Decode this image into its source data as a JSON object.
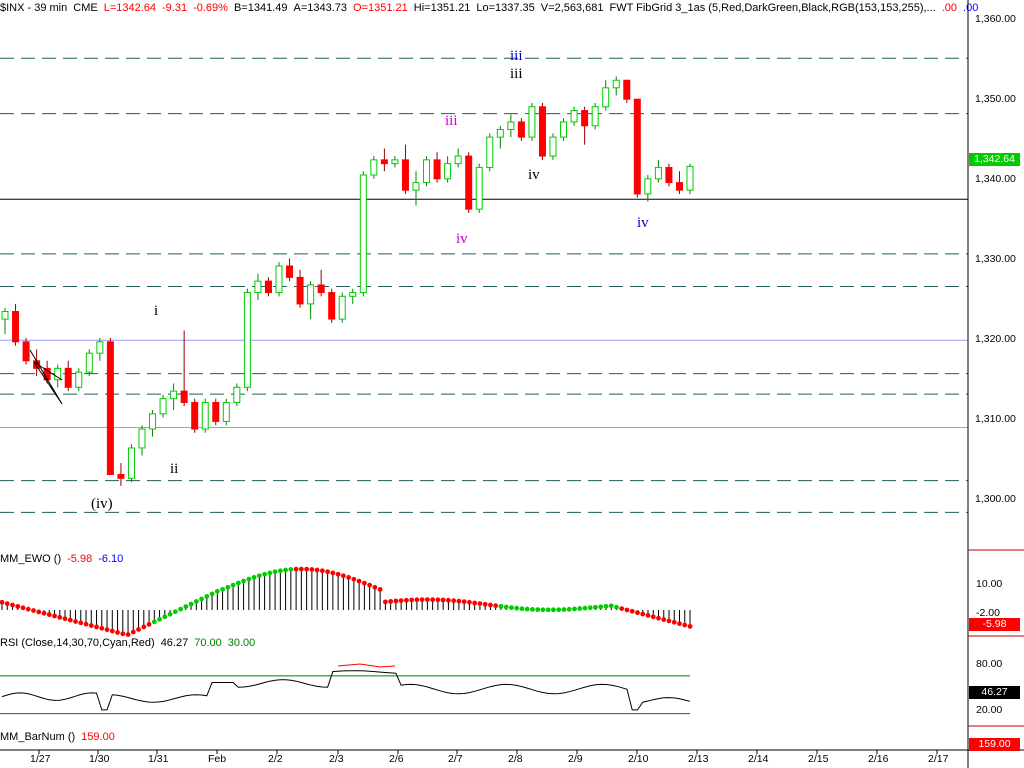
{
  "header": {
    "symbol": "$INX - 39 min",
    "exchange": "CME",
    "last": "L=1342.64",
    "change": "-9.31",
    "change_pct": "-0.69%",
    "bid": "B=1341.49",
    "ask": "A=1343.73",
    "open": "O=1351.21",
    "high": "Hi=1351.21",
    "low": "Lo=1337.35",
    "volume": "V=2,563,681",
    "study": "FWT FibGrid 3_1as (5,Red,DarkGreen,Black,RGB(153,153,255),...",
    "tail1": ".00",
    "tail2": ".00",
    "colors": {
      "last": "#ff0000",
      "change": "#ff0000",
      "change_pct": "#ff0000",
      "bid": "#000000",
      "ask": "#000000",
      "open": "#ff0000",
      "high": "#000000",
      "low": "#000000",
      "volume": "#000000",
      "study": "#000000",
      "tail1": "#ff0000",
      "tail2": "#0000ff"
    }
  },
  "ewo": {
    "label": "MM_EWO ()",
    "value1": "-5.98",
    "value2": "-6.10",
    "current_box": "-5.98",
    "axis_labels": [
      "10.00",
      "-2.00"
    ]
  },
  "rsi": {
    "label": "RSI (Close,14,30,70,Cyan,Red)",
    "value": "46.27",
    "upper": "70.00",
    "lower": "30.00",
    "current_box": "46.27",
    "axis_labels": [
      "80.00",
      "20.00"
    ]
  },
  "barnum": {
    "label": "MM_BarNum ()",
    "value": "159.00",
    "current_box": "159.00"
  },
  "price_axis": {
    "labels": [
      "1,360.00",
      "1,350.00",
      "1,340.00",
      "1,330.00",
      "1,320.00",
      "1,310.00",
      "1,300.00"
    ],
    "current_box": "1,342.64"
  },
  "date_axis": {
    "labels": [
      "1/27",
      "1/30",
      "1/31",
      "Feb",
      "2/2",
      "2/3",
      "2/6",
      "2/7",
      "2/8",
      "2/9",
      "2/10",
      "2/13",
      "2/14",
      "2/15",
      "2/16",
      "2/17"
    ]
  },
  "wave_labels": [
    {
      "text": "(iv)",
      "color": "#000000"
    },
    {
      "text": "i",
      "color": "#000000"
    },
    {
      "text": "ii",
      "color": "#000000"
    },
    {
      "text": "iii",
      "color": "#cc00cc"
    },
    {
      "text": "iv",
      "color": "#cc00cc"
    },
    {
      "text": "iii",
      "color": "#0000cc"
    },
    {
      "text": "iii",
      "color": "#000000"
    },
    {
      "text": "iv",
      "color": "#000000"
    },
    {
      "text": "iv",
      "color": "#0000cc"
    }
  ],
  "colors": {
    "up": "#00cc00",
    "down": "#ff0000",
    "grid_dashed": "#1f5f5f",
    "grid_purple": "#9999ff",
    "support": "#000000",
    "rsi_line": "#000000",
    "rsi_overbought": "#ff0000",
    "rsi_band": "#008000",
    "axis_box_red": "#ff0000",
    "axis_box_green": "#00cc00",
    "separator": "#c00000"
  },
  "chart_data": {
    "type": "candlestick",
    "interval": "39 min",
    "ylim": [
      1296,
      1363
    ],
    "horizontal_levels": [
      {
        "value": 1356.9,
        "style": "dashed"
      },
      {
        "value": 1349.6,
        "style": "dashed"
      },
      {
        "value": 1338.3,
        "style": "solid"
      },
      {
        "value": 1331.1,
        "style": "dashed"
      },
      {
        "value": 1326.8,
        "style": "dashed"
      },
      {
        "value": 1319.7,
        "style": "purple"
      },
      {
        "value": 1315.3,
        "style": "dashed"
      },
      {
        "value": 1312.6,
        "style": "dashed"
      },
      {
        "value": 1308.2,
        "style": "purple"
      },
      {
        "value": 1301.2,
        "style": "dashed"
      },
      {
        "value": 1297.0,
        "style": "dashed"
      }
    ],
    "ohlc_keypoints": [
      [
        1322.5,
        1324.0,
        1320.5,
        1323.5
      ],
      [
        1323.5,
        1324.5,
        1319.0,
        1319.5
      ],
      [
        1319.5,
        1320.0,
        1316.5,
        1317.0
      ],
      [
        1317.0,
        1318.5,
        1315.0,
        1316.0
      ],
      [
        1316.0,
        1317.0,
        1314.0,
        1314.5
      ],
      [
        1314.5,
        1316.5,
        1313.5,
        1316.0
      ],
      [
        1316.0,
        1317.0,
        1313.0,
        1313.5
      ],
      [
        1313.5,
        1316.0,
        1313.0,
        1315.5
      ],
      [
        1315.5,
        1318.5,
        1315.0,
        1318.0
      ],
      [
        1318.0,
        1320.0,
        1317.0,
        1319.5
      ],
      [
        1319.5,
        1320.0,
        1303.0,
        1302.0
      ],
      [
        1302.0,
        1303.5,
        1300.5,
        1301.5
      ],
      [
        1301.5,
        1306.0,
        1301.0,
        1305.5
      ],
      [
        1305.5,
        1308.5,
        1304.5,
        1308.0
      ],
      [
        1308.0,
        1310.5,
        1307.0,
        1310.0
      ],
      [
        1310.0,
        1312.5,
        1309.5,
        1312.0
      ],
      [
        1312.0,
        1314.0,
        1310.5,
        1313.0
      ],
      [
        1313.0,
        1321.0,
        1311.0,
        1311.5
      ],
      [
        1311.5,
        1312.0,
        1307.5,
        1308.0
      ],
      [
        1308.0,
        1312.0,
        1307.5,
        1311.5
      ],
      [
        1311.5,
        1312.0,
        1308.5,
        1309.0
      ],
      [
        1309.0,
        1312.0,
        1308.5,
        1311.5
      ],
      [
        1311.5,
        1314.0,
        1311.0,
        1313.5
      ],
      [
        1313.5,
        1326.5,
        1313.0,
        1326.0
      ],
      [
        1326.0,
        1328.5,
        1325.0,
        1327.5
      ],
      [
        1327.5,
        1328.0,
        1325.5,
        1326.0
      ],
      [
        1326.0,
        1330.0,
        1325.5,
        1329.5
      ],
      [
        1329.5,
        1330.5,
        1327.5,
        1328.0
      ],
      [
        1328.0,
        1329.0,
        1324.0,
        1324.5
      ],
      [
        1324.5,
        1327.5,
        1322.5,
        1327.0
      ],
      [
        1327.0,
        1329.0,
        1325.5,
        1326.0
      ],
      [
        1326.0,
        1326.5,
        1322.0,
        1322.5
      ],
      [
        1322.5,
        1326.0,
        1322.0,
        1325.5
      ],
      [
        1325.5,
        1326.5,
        1324.5,
        1326.0
      ],
      [
        1326.0,
        1342.0,
        1325.5,
        1341.5
      ],
      [
        1341.5,
        1344.0,
        1341.0,
        1343.5
      ],
      [
        1343.5,
        1345.0,
        1342.0,
        1343.0
      ],
      [
        1343.0,
        1344.0,
        1342.5,
        1343.5
      ],
      [
        1343.5,
        1345.5,
        1339.0,
        1339.5
      ],
      [
        1339.5,
        1342.0,
        1337.5,
        1340.5
      ],
      [
        1340.5,
        1344.0,
        1340.0,
        1343.5
      ],
      [
        1343.5,
        1344.5,
        1340.5,
        1341.0
      ],
      [
        1341.0,
        1344.0,
        1340.5,
        1343.0
      ],
      [
        1343.0,
        1345.0,
        1342.5,
        1344.0
      ],
      [
        1344.0,
        1344.5,
        1336.5,
        1337.0
      ],
      [
        1337.0,
        1343.0,
        1336.5,
        1342.5
      ],
      [
        1342.5,
        1347.0,
        1342.0,
        1346.5
      ],
      [
        1346.5,
        1348.0,
        1345.0,
        1347.5
      ],
      [
        1347.5,
        1349.5,
        1346.5,
        1348.5
      ],
      [
        1348.5,
        1349.0,
        1346.0,
        1346.5
      ],
      [
        1346.5,
        1351.0,
        1346.0,
        1350.5
      ],
      [
        1350.5,
        1351.0,
        1343.5,
        1344.0
      ],
      [
        1344.0,
        1347.0,
        1343.5,
        1346.5
      ],
      [
        1346.5,
        1349.0,
        1346.0,
        1348.5
      ],
      [
        1348.5,
        1350.5,
        1348.0,
        1350.0
      ],
      [
        1350.0,
        1350.5,
        1345.5,
        1348.0
      ],
      [
        1348.0,
        1351.0,
        1347.5,
        1350.5
      ],
      [
        1350.5,
        1354.0,
        1350.0,
        1353.0
      ],
      [
        1353.0,
        1354.5,
        1352.0,
        1354.0
      ],
      [
        1354.0,
        1354.0,
        1351.0,
        1351.5
      ],
      [
        1351.5,
        1351.5,
        1338.5,
        1339.0
      ],
      [
        1339.0,
        1341.5,
        1338.0,
        1341.0
      ],
      [
        1341.0,
        1343.5,
        1340.5,
        1342.5
      ],
      [
        1342.5,
        1343.0,
        1340.0,
        1340.5
      ],
      [
        1340.5,
        1342.0,
        1339.0,
        1339.5
      ],
      [
        1339.5,
        1343.0,
        1339.0,
        1342.64
      ]
    ]
  }
}
